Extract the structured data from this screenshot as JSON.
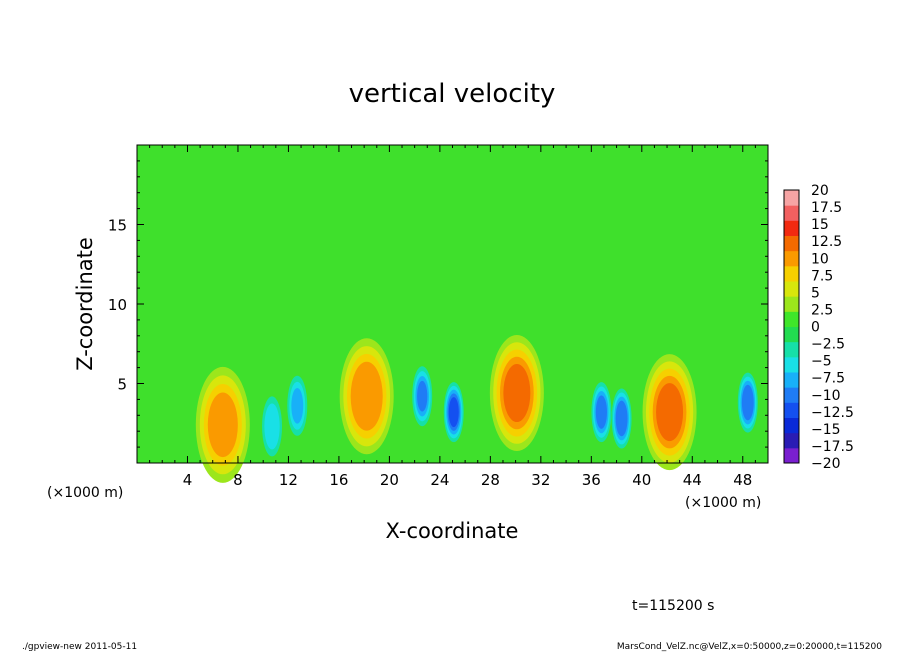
{
  "chart_data": {
    "type": "heatmap",
    "title": "vertical velocity",
    "xlabel": "X-coordinate",
    "ylabel": "Z-coordinate",
    "x_unit_left": "(×1000 m)",
    "x_unit_right": "(×1000 m)",
    "xlim": [
      0,
      50
    ],
    "ylim": [
      0,
      20
    ],
    "x_ticks": [
      4,
      8,
      12,
      16,
      20,
      24,
      28,
      32,
      36,
      40,
      44,
      48
    ],
    "y_ticks": [
      5,
      10,
      15
    ],
    "colorbar": {
      "levels": [
        -20,
        -17.5,
        -15,
        -12.5,
        -10,
        -7.5,
        -5,
        -2.5,
        0,
        2.5,
        5,
        7.5,
        10,
        12.5,
        15,
        17.5,
        20
      ],
      "labels": [
        "20",
        "17.5",
        "15",
        "12.5",
        "10",
        "7.5",
        "5",
        "2.5",
        "0",
        "−2.5",
        "−5",
        "−7.5",
        "−10",
        "−12.5",
        "−15",
        "−17.5",
        "−20"
      ],
      "colors": [
        "#7a1fd0",
        "#2a1cb4",
        "#0a2ad8",
        "#1450f0",
        "#1f7cf5",
        "#18b0f8",
        "#19e0e6",
        "#16e0a8",
        "#22dc50",
        "#3fe62a",
        "#9ce61c",
        "#d8e60c",
        "#f6d000",
        "#fa9a00",
        "#f46a00",
        "#f22a10",
        "#f26060",
        "#f6a4a4"
      ]
    },
    "features": [
      {
        "x": 6.8,
        "z": 2.4,
        "w": 0.32,
        "peak": 11
      },
      {
        "x": 10.7,
        "z": 2.3,
        "w": -0.05,
        "peak": -7
      },
      {
        "x": 12.7,
        "z": 3.6,
        "w": -0.05,
        "peak": -8
      },
      {
        "x": 18.2,
        "z": 4.2,
        "w": 0.3,
        "peak": 12
      },
      {
        "x": 22.6,
        "z": 4.2,
        "w": -0.05,
        "peak": -10
      },
      {
        "x": 25.1,
        "z": 3.2,
        "w": -0.05,
        "peak": -13
      },
      {
        "x": 30.1,
        "z": 4.4,
        "w": 0.3,
        "peak": 13
      },
      {
        "x": 36.8,
        "z": 3.2,
        "w": -0.05,
        "peak": -11
      },
      {
        "x": 38.4,
        "z": 2.8,
        "w": -0.05,
        "peak": -12
      },
      {
        "x": 42.2,
        "z": 3.2,
        "w": 0.3,
        "peak": 13
      },
      {
        "x": 48.4,
        "z": 3.8,
        "w": -0.05,
        "peak": -12
      }
    ],
    "annotation": "t=115200 s"
  },
  "footer": {
    "left": "./gpview-new  2011-05-11",
    "right": "MarsCond_VelZ.nc@VelZ,x=0:50000,z=0:20000,t=115200"
  }
}
